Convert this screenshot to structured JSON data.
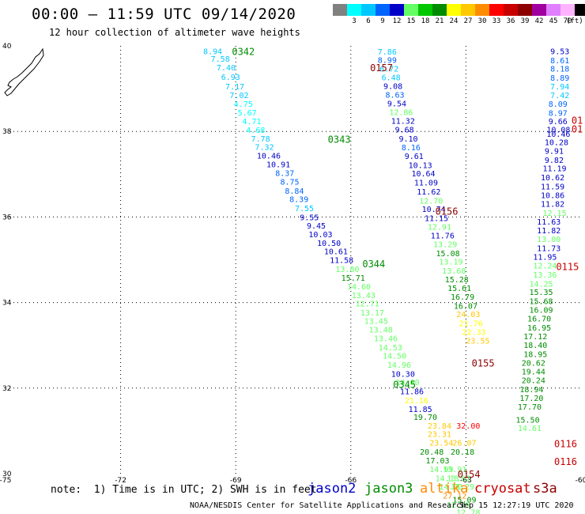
{
  "header": {
    "title": "00:00 – 11:59 UTC 09/14/2020",
    "subtitle": "12 hour collection of altimeter wave heights"
  },
  "scale": {
    "unit": "(ft)",
    "swatches": [
      {
        "label": "",
        "color": "#808080"
      },
      {
        "label": "3",
        "color": "#00ffff"
      },
      {
        "label": "6",
        "color": "#00c8ff"
      },
      {
        "label": "9",
        "color": "#0064ff"
      },
      {
        "label": "12",
        "color": "#0000c8"
      },
      {
        "label": "15",
        "color": "#64ff64"
      },
      {
        "label": "18",
        "color": "#00c800"
      },
      {
        "label": "21",
        "color": "#008c00"
      },
      {
        "label": "24",
        "color": "#ffff00"
      },
      {
        "label": "27",
        "color": "#ffc800"
      },
      {
        "label": "30",
        "color": "#ff8c00"
      },
      {
        "label": "33",
        "color": "#ff0000"
      },
      {
        "label": "36",
        "color": "#c80000"
      },
      {
        "label": "39",
        "color": "#8c0000"
      },
      {
        "label": "42",
        "color": "#a000a0"
      },
      {
        "label": "45",
        "color": "#e080ff"
      },
      {
        "label": "70",
        "color": "#ffb4ff"
      },
      {
        "label": "",
        "color": "#000000"
      }
    ]
  },
  "axes": {
    "lon_labels": [
      "-75",
      "-72",
      "-69",
      "-66",
      "-63",
      "-60"
    ],
    "lat_labels": [
      "40",
      "38",
      "36",
      "34",
      "32",
      "30"
    ],
    "lon_range": [
      -75,
      -60
    ],
    "lat_range": [
      30,
      40
    ],
    "grid_lon": [
      -72,
      -69,
      -66,
      -63
    ],
    "grid_lat": [
      38,
      36,
      34,
      32
    ]
  },
  "passes": [
    {
      "label": "0342",
      "color": "#008c00",
      "lon": -69.1,
      "lat": 39.88
    },
    {
      "label": "0343",
      "color": "#008c00",
      "lon": -66.6,
      "lat": 37.83
    },
    {
      "label": "0344",
      "color": "#008c00",
      "lon": -65.7,
      "lat": 34.92
    },
    {
      "label": "0345",
      "color": "#008c00",
      "lon": -64.9,
      "lat": 32.1
    },
    {
      "label": "0157",
      "color": "#8c0000",
      "lon": -65.5,
      "lat": 39.5
    },
    {
      "label": "0156",
      "color": "#8c0000",
      "lon": -63.8,
      "lat": 36.15
    },
    {
      "label": "0155",
      "color": "#8c0000",
      "lon": -62.85,
      "lat": 32.6
    },
    {
      "label": "0154",
      "color": "#8c0000",
      "lon": -63.22,
      "lat": 30.0
    },
    {
      "label": "0116",
      "color": "#c80000",
      "lon": -60.7,
      "lat": 30.71
    },
    {
      "label": "0116",
      "color": "#c80000",
      "lon": -60.7,
      "lat": 30.3
    },
    {
      "label": "0115",
      "color": "#c80000",
      "lon": -60.65,
      "lat": 34.85
    }
  ],
  "readings": [
    {
      "v": "8.94",
      "lon": -69.85,
      "lat": 39.88,
      "c": "#00c8ff"
    },
    {
      "v": "7.58",
      "lon": -69.65,
      "lat": 39.7,
      "c": "#00c8ff"
    },
    {
      "v": "7.40",
      "lon": -69.5,
      "lat": 39.5,
      "c": "#00c8ff"
    },
    {
      "v": "6.93",
      "lon": -69.38,
      "lat": 39.28,
      "c": "#00c8ff"
    },
    {
      "v": "7.17",
      "lon": -69.27,
      "lat": 39.06,
      "c": "#00c8ff"
    },
    {
      "v": "7.02",
      "lon": -69.16,
      "lat": 38.85,
      "c": "#00c8ff"
    },
    {
      "v": "4.75",
      "lon": -69.05,
      "lat": 38.65,
      "c": "#00ffff"
    },
    {
      "v": "5.67",
      "lon": -68.95,
      "lat": 38.45,
      "c": "#00ffff"
    },
    {
      "v": "4.71",
      "lon": -68.83,
      "lat": 38.24,
      "c": "#00ffff"
    },
    {
      "v": "4.68",
      "lon": -68.73,
      "lat": 38.04,
      "c": "#00ffff"
    },
    {
      "v": "7.78",
      "lon": -68.6,
      "lat": 37.84,
      "c": "#00c8ff"
    },
    {
      "v": "7.32",
      "lon": -68.5,
      "lat": 37.64,
      "c": "#00c8ff"
    },
    {
      "v": "10.46",
      "lon": -68.45,
      "lat": 37.44,
      "c": "#0000c8"
    },
    {
      "v": "10.91",
      "lon": -68.2,
      "lat": 37.24,
      "c": "#0000c8"
    },
    {
      "v": "8.37",
      "lon": -67.97,
      "lat": 37.03,
      "c": "#0064ff"
    },
    {
      "v": "8.75",
      "lon": -67.84,
      "lat": 36.83,
      "c": "#0064ff"
    },
    {
      "v": "8.84",
      "lon": -67.72,
      "lat": 36.62,
      "c": "#0064ff"
    },
    {
      "v": "8.39",
      "lon": -67.6,
      "lat": 36.42,
      "c": "#0064ff"
    },
    {
      "v": "7.55",
      "lon": -67.46,
      "lat": 36.21,
      "c": "#00c8ff"
    },
    {
      "v": "9.55",
      "lon": -67.33,
      "lat": 36.0,
      "c": "#0000c8"
    },
    {
      "v": "9.45",
      "lon": -67.15,
      "lat": 35.8,
      "c": "#0000c8"
    },
    {
      "v": "10.03",
      "lon": -67.1,
      "lat": 35.6,
      "c": "#0000c8"
    },
    {
      "v": "10.50",
      "lon": -66.88,
      "lat": 35.4,
      "c": "#0000c8"
    },
    {
      "v": "10.61",
      "lon": -66.7,
      "lat": 35.2,
      "c": "#0000c8"
    },
    {
      "v": "11.58",
      "lon": -66.55,
      "lat": 35.0,
      "c": "#0000c8"
    },
    {
      "v": "13.80",
      "lon": -66.4,
      "lat": 34.79,
      "c": "#64ff64"
    },
    {
      "v": "15.71",
      "lon": -66.25,
      "lat": 34.58,
      "c": "#008c00"
    },
    {
      "v": "14.60",
      "lon": -66.1,
      "lat": 34.38,
      "c": "#64ff64"
    },
    {
      "v": "13.43",
      "lon": -65.98,
      "lat": 34.18,
      "c": "#64ff64"
    },
    {
      "v": "12.71",
      "lon": -65.88,
      "lat": 33.98,
      "c": "#64ff64"
    },
    {
      "v": "13.17",
      "lon": -65.75,
      "lat": 33.77,
      "c": "#64ff64"
    },
    {
      "v": "13.45",
      "lon": -65.65,
      "lat": 33.58,
      "c": "#64ff64"
    },
    {
      "v": "13.48",
      "lon": -65.53,
      "lat": 33.37,
      "c": "#64ff64"
    },
    {
      "v": "13.46",
      "lon": -65.4,
      "lat": 33.17,
      "c": "#64ff64"
    },
    {
      "v": "14.53",
      "lon": -65.28,
      "lat": 32.96,
      "c": "#64ff64"
    },
    {
      "v": "14.50",
      "lon": -65.17,
      "lat": 32.76,
      "c": "#64ff64"
    },
    {
      "v": "14.96",
      "lon": -65.05,
      "lat": 32.55,
      "c": "#64ff64"
    },
    {
      "v": "10.30",
      "lon": -64.95,
      "lat": 32.34,
      "c": "#0000c8"
    },
    {
      "v": "14.00",
      "lon": -64.83,
      "lat": 32.14,
      "c": "#64ff64"
    },
    {
      "v": "11.86",
      "lon": -64.72,
      "lat": 31.93,
      "c": "#0000c8"
    },
    {
      "v": "21.16",
      "lon": -64.6,
      "lat": 31.72,
      "c": "#ffff00"
    },
    {
      "v": "11.85",
      "lon": -64.5,
      "lat": 31.52,
      "c": "#0000c8"
    },
    {
      "v": "19.70",
      "lon": -64.37,
      "lat": 31.33,
      "c": "#008c00"
    },
    {
      "v": "7.86",
      "lon": -65.3,
      "lat": 39.87,
      "c": "#00c8ff"
    },
    {
      "v": "8.99",
      "lon": -65.3,
      "lat": 39.68,
      "c": "#0064ff"
    },
    {
      "v": "6.72",
      "lon": -65.25,
      "lat": 39.47,
      "c": "#00c8ff"
    },
    {
      "v": "6.48",
      "lon": -65.2,
      "lat": 39.27,
      "c": "#00c8ff"
    },
    {
      "v": "9.08",
      "lon": -65.15,
      "lat": 39.07,
      "c": "#0000c8"
    },
    {
      "v": "8.63",
      "lon": -65.1,
      "lat": 38.86,
      "c": "#0064ff"
    },
    {
      "v": "9.54",
      "lon": -65.05,
      "lat": 38.66,
      "c": "#0000c8"
    },
    {
      "v": "12.86",
      "lon": -65.0,
      "lat": 38.46,
      "c": "#64ff64"
    },
    {
      "v": "11.32",
      "lon": -64.95,
      "lat": 38.25,
      "c": "#0000c8"
    },
    {
      "v": "9.68",
      "lon": -64.85,
      "lat": 38.05,
      "c": "#0000c8"
    },
    {
      "v": "9.10",
      "lon": -64.75,
      "lat": 37.84,
      "c": "#0000c8"
    },
    {
      "v": "8.16",
      "lon": -64.68,
      "lat": 37.63,
      "c": "#0064ff"
    },
    {
      "v": "9.61",
      "lon": -64.6,
      "lat": 37.43,
      "c": "#0000c8"
    },
    {
      "v": "10.13",
      "lon": -64.5,
      "lat": 37.22,
      "c": "#0000c8"
    },
    {
      "v": "10.64",
      "lon": -64.42,
      "lat": 37.02,
      "c": "#0000c8"
    },
    {
      "v": "11.09",
      "lon": -64.35,
      "lat": 36.81,
      "c": "#0000c8"
    },
    {
      "v": "11.62",
      "lon": -64.28,
      "lat": 36.6,
      "c": "#0000c8"
    },
    {
      "v": "12.70",
      "lon": -64.22,
      "lat": 36.39,
      "c": "#64ff64"
    },
    {
      "v": "10.74",
      "lon": -64.15,
      "lat": 36.19,
      "c": "#0000c8"
    },
    {
      "v": "11.15",
      "lon": -64.08,
      "lat": 35.98,
      "c": "#0000c8"
    },
    {
      "v": "12.91",
      "lon": -64.0,
      "lat": 35.78,
      "c": "#64ff64"
    },
    {
      "v": "11.76",
      "lon": -63.92,
      "lat": 35.57,
      "c": "#0000c8"
    },
    {
      "v": "13.29",
      "lon": -63.85,
      "lat": 35.37,
      "c": "#64ff64"
    },
    {
      "v": "15.08",
      "lon": -63.78,
      "lat": 35.16,
      "c": "#008c00"
    },
    {
      "v": "13.19",
      "lon": -63.7,
      "lat": 34.96,
      "c": "#64ff64"
    },
    {
      "v": "13.68",
      "lon": -63.62,
      "lat": 34.75,
      "c": "#64ff64"
    },
    {
      "v": "15.28",
      "lon": -63.55,
      "lat": 34.55,
      "c": "#008c00"
    },
    {
      "v": "15.61",
      "lon": -63.48,
      "lat": 34.34,
      "c": "#008c00"
    },
    {
      "v": "16.79",
      "lon": -63.4,
      "lat": 34.14,
      "c": "#008c00"
    },
    {
      "v": "16.07",
      "lon": -63.32,
      "lat": 33.93,
      "c": "#008c00"
    },
    {
      "v": "24.03",
      "lon": -63.25,
      "lat": 33.73,
      "c": "#ffc800"
    },
    {
      "v": "21.76",
      "lon": -63.18,
      "lat": 33.52,
      "c": "#ffff00"
    },
    {
      "v": "22.33",
      "lon": -63.1,
      "lat": 33.32,
      "c": "#ffff00"
    },
    {
      "v": "23.55",
      "lon": -63.0,
      "lat": 33.11,
      "c": "#ffc800"
    },
    {
      "v": "32.00",
      "lon": -63.25,
      "lat": 31.13,
      "c": "#ff0000"
    },
    {
      "v": "23.84",
      "lon": -64.0,
      "lat": 31.13,
      "c": "#ffc800"
    },
    {
      "v": "23.31",
      "lon": -64.0,
      "lat": 30.93,
      "c": "#ffc800"
    },
    {
      "v": "23.54",
      "lon": -63.95,
      "lat": 30.73,
      "c": "#ffc800"
    },
    {
      "v": "26.07",
      "lon": -63.35,
      "lat": 30.73,
      "c": "#ffc800"
    },
    {
      "v": "20.48",
      "lon": -64.2,
      "lat": 30.52,
      "c": "#008c00"
    },
    {
      "v": "20.18",
      "lon": -63.4,
      "lat": 30.52,
      "c": "#008c00"
    },
    {
      "v": "17.03",
      "lon": -64.05,
      "lat": 30.31,
      "c": "#008c00"
    },
    {
      "v": "14.99",
      "lon": -63.95,
      "lat": 30.11,
      "c": "#64ff64"
    },
    {
      "v": "13.91",
      "lon": -63.6,
      "lat": 30.11,
      "c": "#64ff64"
    },
    {
      "v": "14.13",
      "lon": -63.8,
      "lat": 29.9,
      "c": "#64ff64"
    },
    {
      "v": "13.62",
      "lon": -63.5,
      "lat": 29.9,
      "c": "#64ff64"
    },
    {
      "v": "14.73",
      "lon": -63.7,
      "lat": 29.7,
      "c": "#64ff64"
    },
    {
      "v": "14.29",
      "lon": -63.4,
      "lat": 29.7,
      "c": "#64ff64"
    },
    {
      "v": "27.12",
      "lon": -63.6,
      "lat": 29.49,
      "c": "#ff8c00"
    },
    {
      "v": "15.09",
      "lon": -63.35,
      "lat": 29.4,
      "c": "#008c00"
    },
    {
      "v": "12.29",
      "lon": -63.5,
      "lat": 29.28,
      "c": "#64ff64"
    },
    {
      "v": "12.78",
      "lon": -63.25,
      "lat": 29.1,
      "c": "#64ff64"
    },
    {
      "v": "9.53",
      "lon": -60.8,
      "lat": 39.88,
      "c": "#0000c8"
    },
    {
      "v": "8.61",
      "lon": -60.8,
      "lat": 39.67,
      "c": "#0064ff"
    },
    {
      "v": "8.18",
      "lon": -60.8,
      "lat": 39.47,
      "c": "#0064ff"
    },
    {
      "v": "8.89",
      "lon": -60.8,
      "lat": 39.26,
      "c": "#0064ff"
    },
    {
      "v": "7.94",
      "lon": -60.8,
      "lat": 39.06,
      "c": "#00c8ff"
    },
    {
      "v": "7.42",
      "lon": -60.8,
      "lat": 38.85,
      "c": "#00c8ff"
    },
    {
      "v": "8.09",
      "lon": -60.85,
      "lat": 38.65,
      "c": "#0064ff"
    },
    {
      "v": "8.97",
      "lon": -60.85,
      "lat": 38.44,
      "c": "#0064ff"
    },
    {
      "v": "9.66",
      "lon": -60.85,
      "lat": 38.24,
      "c": "#0000c8"
    },
    {
      "v": "10.08",
      "lon": -60.9,
      "lat": 38.05,
      "c": "#0000c8"
    },
    {
      "v": "10.46",
      "lon": -60.9,
      "lat": 37.95,
      "c": "#0000c8"
    },
    {
      "v": "10.28",
      "lon": -60.95,
      "lat": 37.75,
      "c": "#0000c8"
    },
    {
      "v": "9.91",
      "lon": -60.95,
      "lat": 37.55,
      "c": "#0000c8"
    },
    {
      "v": "9.82",
      "lon": -60.95,
      "lat": 37.34,
      "c": "#0000c8"
    },
    {
      "v": "11.19",
      "lon": -61.0,
      "lat": 37.14,
      "c": "#0000c8"
    },
    {
      "v": "10.62",
      "lon": -61.05,
      "lat": 36.93,
      "c": "#0000c8"
    },
    {
      "v": "11.59",
      "lon": -61.05,
      "lat": 36.72,
      "c": "#0000c8"
    },
    {
      "v": "10.86",
      "lon": -61.05,
      "lat": 36.52,
      "c": "#0000c8"
    },
    {
      "v": "11.82",
      "lon": -61.05,
      "lat": 36.31,
      "c": "#0000c8"
    },
    {
      "v": "12.15",
      "lon": -61.0,
      "lat": 36.1,
      "c": "#64ff64"
    },
    {
      "v": "11.63",
      "lon": -61.15,
      "lat": 35.9,
      "c": "#0000c8"
    },
    {
      "v": "11.82",
      "lon": -61.15,
      "lat": 35.69,
      "c": "#0000c8"
    },
    {
      "v": "13.00",
      "lon": -61.15,
      "lat": 35.49,
      "c": "#64ff64"
    },
    {
      "v": "11.73",
      "lon": -61.15,
      "lat": 35.28,
      "c": "#0000c8"
    },
    {
      "v": "11.95",
      "lon": -61.25,
      "lat": 35.07,
      "c": "#0000c8"
    },
    {
      "v": "12.24",
      "lon": -61.25,
      "lat": 34.87,
      "c": "#64ff64"
    },
    {
      "v": "13.36",
      "lon": -61.25,
      "lat": 34.66,
      "c": "#64ff64"
    },
    {
      "v": "14.25",
      "lon": -61.35,
      "lat": 34.45,
      "c": "#64ff64"
    },
    {
      "v": "15.35",
      "lon": -61.35,
      "lat": 34.25,
      "c": "#008c00"
    },
    {
      "v": "15.68",
      "lon": -61.35,
      "lat": 34.04,
      "c": "#008c00"
    },
    {
      "v": "16.09",
      "lon": -61.35,
      "lat": 33.84,
      "c": "#008c00"
    },
    {
      "v": "16.70",
      "lon": -61.4,
      "lat": 33.63,
      "c": "#008c00"
    },
    {
      "v": "16.95",
      "lon": -61.4,
      "lat": 33.42,
      "c": "#008c00"
    },
    {
      "v": "17.12",
      "lon": -61.5,
      "lat": 33.22,
      "c": "#008c00"
    },
    {
      "v": "18.40",
      "lon": -61.5,
      "lat": 33.01,
      "c": "#008c00"
    },
    {
      "v": "18.95",
      "lon": -61.5,
      "lat": 32.8,
      "c": "#008c00"
    },
    {
      "v": "20.62",
      "lon": -61.55,
      "lat": 32.6,
      "c": "#008c00"
    },
    {
      "v": "19.44",
      "lon": -61.55,
      "lat": 32.39,
      "c": "#008c00"
    },
    {
      "v": "20.24",
      "lon": -61.55,
      "lat": 32.19,
      "c": "#008c00"
    },
    {
      "v": "18.94",
      "lon": -61.6,
      "lat": 31.98,
      "c": "#008c00"
    },
    {
      "v": "17.20",
      "lon": -61.6,
      "lat": 31.77,
      "c": "#008c00"
    },
    {
      "v": "17.70",
      "lon": -61.65,
      "lat": 31.57,
      "c": "#008c00"
    },
    {
      "v": "15.50",
      "lon": -61.7,
      "lat": 31.27,
      "c": "#008c00"
    },
    {
      "v": "14.61",
      "lon": -61.65,
      "lat": 31.07,
      "c": "#64ff64"
    }
  ],
  "partial_labels": [
    {
      "label": "01",
      "color": "#c80000",
      "lon": -60.25,
      "lat": 38.25
    },
    {
      "label": "01",
      "color": "#c80000",
      "lon": -60.25,
      "lat": 38.05
    }
  ],
  "note": "note:  1) Time is in UTC; 2) SWH is in feet",
  "satellites": [
    {
      "name": "jason2",
      "color": "#0000c8"
    },
    {
      "name": "jason3",
      "color": "#008c00"
    },
    {
      "name": "altika",
      "color": "#ff8c00"
    },
    {
      "name": "cryosat",
      "color": "#c80000"
    },
    {
      "name": "s3a",
      "color": "#8c0000"
    }
  ],
  "footer": {
    "center": "NOAA/NESDIS Center for Satellite Applications and Research",
    "timestamp": "Sep 15 12:27:19 UTC 2020"
  }
}
